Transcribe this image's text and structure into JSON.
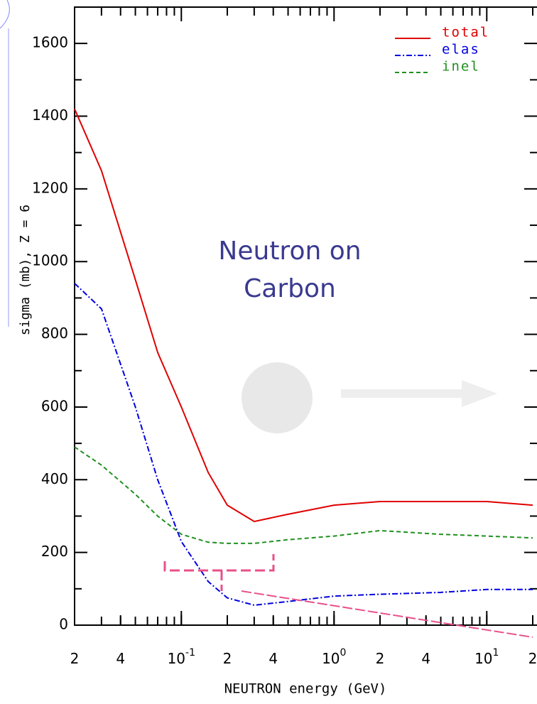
{
  "chart_data": {
    "type": "line",
    "annotation": [
      "Neutron on",
      "Carbon"
    ],
    "y_label": "sigma (mb), Z =  6",
    "x_label": "NEUTRON  energy (GeV)",
    "log_x": true,
    "xlim": [
      0.02,
      20
    ],
    "xticks": [
      {
        "value": 0.02,
        "label": "2"
      },
      {
        "value": 0.04,
        "label": "4"
      },
      {
        "value": 0.1,
        "label": "10",
        "sup": "-1"
      },
      {
        "value": 0.2,
        "label": "2"
      },
      {
        "value": 0.4,
        "label": "4"
      },
      {
        "value": 1,
        "label": "10",
        "sup": "0"
      },
      {
        "value": 2,
        "label": "2"
      },
      {
        "value": 4,
        "label": "4"
      },
      {
        "value": 10,
        "label": "10",
        "sup": "1"
      },
      {
        "value": 20,
        "label": "2"
      }
    ],
    "ylim": [
      0,
      1700
    ],
    "yticks": [
      0,
      200,
      400,
      600,
      800,
      1000,
      1200,
      1400,
      1600
    ],
    "x": [
      0.02,
      0.03,
      0.05,
      0.07,
      0.1,
      0.15,
      0.2,
      0.3,
      0.5,
      1,
      2,
      5,
      10,
      20
    ],
    "series": [
      {
        "name": "total",
        "color": "#e00000",
        "dash": "",
        "values": [
          1420,
          1250,
          950,
          750,
          600,
          420,
          330,
          285,
          305,
          330,
          340,
          340,
          340,
          330
        ]
      },
      {
        "name": "elas",
        "color": "#0000e0",
        "dash": "8 3 2 3",
        "values": [
          940,
          870,
          600,
          400,
          230,
          120,
          75,
          55,
          65,
          80,
          85,
          90,
          98,
          98
        ]
      },
      {
        "name": "inel",
        "color": "#209020",
        "dash": "6 4",
        "values": [
          490,
          440,
          360,
          300,
          250,
          228,
          225,
          225,
          235,
          245,
          260,
          250,
          245,
          240
        ]
      }
    ]
  }
}
